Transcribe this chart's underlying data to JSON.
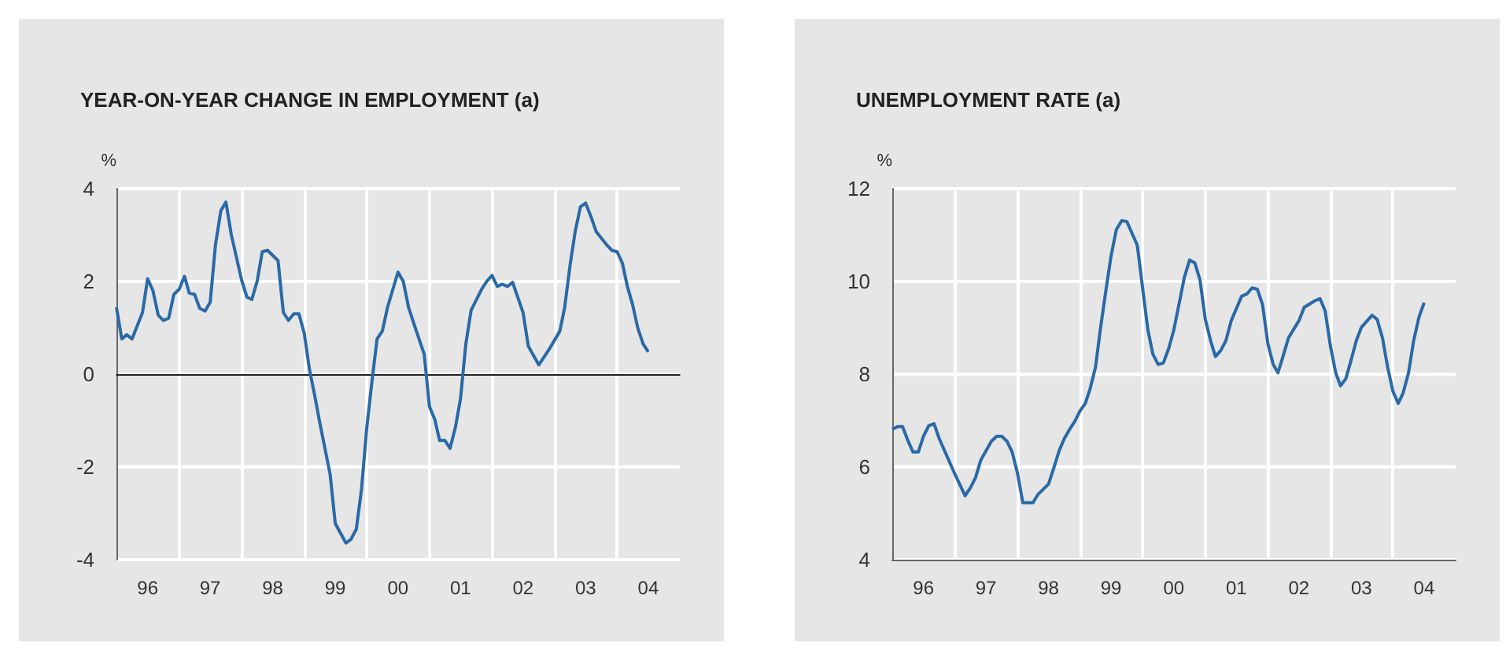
{
  "chart_data": [
    {
      "type": "line",
      "title": "YEAR-ON-YEAR CHANGE IN EMPLOYMENT (a)",
      "ylabel": "%",
      "grid": true,
      "xlim": [
        "1996",
        "2005"
      ],
      "xticks": [
        {
          "value": "1996-07",
          "label": "96"
        },
        {
          "value": "1997",
          "label": null
        },
        {
          "value": "1997-07",
          "label": "97"
        },
        {
          "value": "1998",
          "label": null
        },
        {
          "value": "1998-07",
          "label": "98"
        },
        {
          "value": "1999",
          "label": null
        },
        {
          "value": "1999-07",
          "label": "99"
        },
        {
          "value": "2000",
          "label": null
        },
        {
          "value": "2000-07",
          "label": "00"
        },
        {
          "value": "2001",
          "label": null
        },
        {
          "value": "2001-07",
          "label": "01"
        },
        {
          "value": "2002",
          "label": null
        },
        {
          "value": "2002-07",
          "label": "02"
        },
        {
          "value": "2003",
          "label": null
        },
        {
          "value": "2003-07",
          "label": "03"
        },
        {
          "value": "2004",
          "label": null
        },
        {
          "value": "2004-07",
          "label": "04"
        }
      ],
      "ylim": [
        -4,
        4
      ],
      "yticks": [
        -4,
        -2,
        0,
        2,
        4
      ],
      "ref_lines": [
        {
          "axis": "y",
          "value": 0,
          "color": "#222222"
        }
      ],
      "series": [
        {
          "color": "#2a69a7",
          "x": [
            "1996-01",
            "1996-02",
            "1996-03",
            "1996-04",
            "1996-06",
            "1996-07",
            "1996-08",
            "1996-09",
            "1996-10",
            "1996-11",
            "1996-12",
            "1997-01",
            "1997-02",
            "1997-03",
            "1997-04",
            "1997-05",
            "1997-06",
            "1997-07",
            "1997-08",
            "1997-09",
            "1997-10",
            "1997-11",
            "1998-01",
            "1998-02",
            "1998-03",
            "1998-04",
            "1998-05",
            "1998-06",
            "1998-08",
            "1998-09",
            "1998-10",
            "1998-11",
            "1998-12",
            "1999-01",
            "1999-02",
            "1999-03",
            "1999-04",
            "1999-06",
            "1999-07",
            "1999-09",
            "1999-10",
            "1999-11",
            "1999-12",
            "2000-01",
            "2000-02",
            "2000-03",
            "2000-04",
            "2000-05",
            "2000-07",
            "2000-08",
            "2000-09",
            "2000-10",
            "2000-12",
            "2001-01",
            "2001-02",
            "2001-03",
            "2001-04",
            "2001-05",
            "2001-06",
            "2001-07",
            "2001-08",
            "2001-09",
            "2001-11",
            "2001-12",
            "2002-01",
            "2002-02",
            "2002-03",
            "2002-04",
            "2002-05",
            "2002-07",
            "2002-08",
            "2002-09",
            "2002-10",
            "2002-12",
            "2003-02",
            "2003-03",
            "2003-04",
            "2003-05",
            "2003-06",
            "2003-07",
            "2003-08",
            "2003-09",
            "2003-11",
            "2003-12",
            "2004-01",
            "2004-02",
            "2004-03",
            "2004-04",
            "2004-05",
            "2004-06",
            "2004-07"
          ],
          "values": [
            1.44,
            0.76,
            0.85,
            0.76,
            1.33,
            2.06,
            1.8,
            1.27,
            1.16,
            1.21,
            1.72,
            1.83,
            2.11,
            1.75,
            1.72,
            1.42,
            1.36,
            1.55,
            2.79,
            3.52,
            3.71,
            3.01,
            2.02,
            1.66,
            1.61,
            2.0,
            2.64,
            2.67,
            2.45,
            1.33,
            1.16,
            1.3,
            1.3,
            0.88,
            0.09,
            -0.42,
            -1.03,
            -2.16,
            -3.22,
            -3.64,
            -3.56,
            -3.34,
            -2.49,
            -1.15,
            -0.13,
            0.76,
            0.93,
            1.44,
            2.2,
            2.0,
            1.44,
            1.1,
            0.43,
            -0.7,
            -0.98,
            -1.43,
            -1.43,
            -1.6,
            -1.15,
            -0.53,
            0.65,
            1.38,
            1.83,
            2.0,
            2.13,
            1.89,
            1.94,
            1.89,
            1.98,
            1.33,
            0.6,
            0.4,
            0.2,
            0.54,
            0.93,
            1.44,
            2.34,
            3.07,
            3.61,
            3.69,
            3.4,
            3.07,
            2.79,
            2.67,
            2.64,
            2.39,
            1.89,
            1.49,
            0.99,
            0.65,
            0.48
          ]
        }
      ]
    },
    {
      "type": "line",
      "title": "UNEMPLOYMENT RATE (a)",
      "ylabel": "%",
      "grid": true,
      "xlim": [
        "1996",
        "2005"
      ],
      "xticks": [
        {
          "value": "1996-07",
          "label": "96"
        },
        {
          "value": "1997",
          "label": null
        },
        {
          "value": "1997-07",
          "label": "97"
        },
        {
          "value": "1998",
          "label": null
        },
        {
          "value": "1998-07",
          "label": "98"
        },
        {
          "value": "1999",
          "label": null
        },
        {
          "value": "1999-07",
          "label": "99"
        },
        {
          "value": "2000",
          "label": null
        },
        {
          "value": "2000-07",
          "label": "00"
        },
        {
          "value": "2001",
          "label": null
        },
        {
          "value": "2001-07",
          "label": "01"
        },
        {
          "value": "2002",
          "label": null
        },
        {
          "value": "2002-07",
          "label": "02"
        },
        {
          "value": "2003",
          "label": null
        },
        {
          "value": "2003-07",
          "label": "03"
        },
        {
          "value": "2004",
          "label": null
        },
        {
          "value": "2004-07",
          "label": "04"
        }
      ],
      "ylim": [
        4,
        12
      ],
      "yticks": [
        4,
        6,
        8,
        10,
        12
      ],
      "series": [
        {
          "color": "#2a69a7",
          "x": [
            "1996-01",
            "1996-02",
            "1996-03",
            "1996-04",
            "1996-05",
            "1996-06",
            "1996-07",
            "1996-08",
            "1996-09",
            "1996-10",
            "1997-01",
            "1997-03",
            "1997-04",
            "1997-05",
            "1997-06",
            "1997-08",
            "1997-09",
            "1997-10",
            "1997-11",
            "1997-12",
            "1998-01",
            "1998-02",
            "1998-04",
            "1998-05",
            "1998-07",
            "1998-08",
            "1998-09",
            "1998-10",
            "1998-11",
            "1998-12",
            "1999-01",
            "1999-02",
            "1999-03",
            "1999-04",
            "1999-05",
            "1999-06",
            "1999-07",
            "1999-08",
            "1999-09",
            "1999-10",
            "1999-12",
            "2000-01",
            "2000-02",
            "2000-03",
            "2000-04",
            "2000-05",
            "2000-06",
            "2000-07",
            "2000-08",
            "2000-09",
            "2000-10",
            "2000-11",
            "2000-12",
            "2001-01",
            "2001-02",
            "2001-03",
            "2001-04",
            "2001-05",
            "2001-06",
            "2001-07",
            "2001-08",
            "2001-09",
            "2001-10",
            "2001-11",
            "2001-12",
            "2002-01",
            "2002-02",
            "2002-03",
            "2002-04",
            "2002-05",
            "2002-07",
            "2002-08",
            "2002-10",
            "2002-11",
            "2002-12",
            "2003-01",
            "2003-02",
            "2003-03",
            "2003-04",
            "2003-05",
            "2003-06",
            "2003-07",
            "2003-09",
            "2003-10",
            "2003-11",
            "2003-12",
            "2004-01",
            "2004-02",
            "2004-03",
            "2004-04",
            "2004-05",
            "2004-06",
            "2004-07"
          ],
          "values": [
            6.81,
            6.87,
            6.87,
            6.57,
            6.32,
            6.32,
            6.66,
            6.89,
            6.93,
            6.61,
            5.84,
            5.38,
            5.55,
            5.77,
            6.15,
            6.55,
            6.66,
            6.66,
            6.55,
            6.32,
            5.86,
            5.23,
            5.23,
            5.41,
            5.63,
            5.98,
            6.35,
            6.61,
            6.81,
            6.98,
            7.21,
            7.37,
            7.69,
            8.15,
            9.01,
            9.81,
            10.55,
            11.12,
            11.31,
            11.29,
            10.78,
            9.86,
            8.95,
            8.43,
            8.21,
            8.24,
            8.55,
            8.95,
            9.52,
            10.09,
            10.46,
            10.4,
            10.03,
            9.18,
            8.72,
            8.38,
            8.51,
            8.72,
            9.15,
            9.41,
            9.68,
            9.73,
            9.86,
            9.83,
            9.5,
            8.66,
            8.21,
            8.03,
            8.4,
            8.78,
            9.15,
            9.44,
            9.58,
            9.63,
            9.37,
            8.61,
            8.03,
            7.75,
            7.9,
            8.29,
            8.72,
            9.01,
            9.27,
            9.18,
            8.78,
            8.15,
            7.63,
            7.37,
            7.6,
            8.03,
            8.72,
            9.23,
            9.54
          ]
        }
      ]
    }
  ]
}
